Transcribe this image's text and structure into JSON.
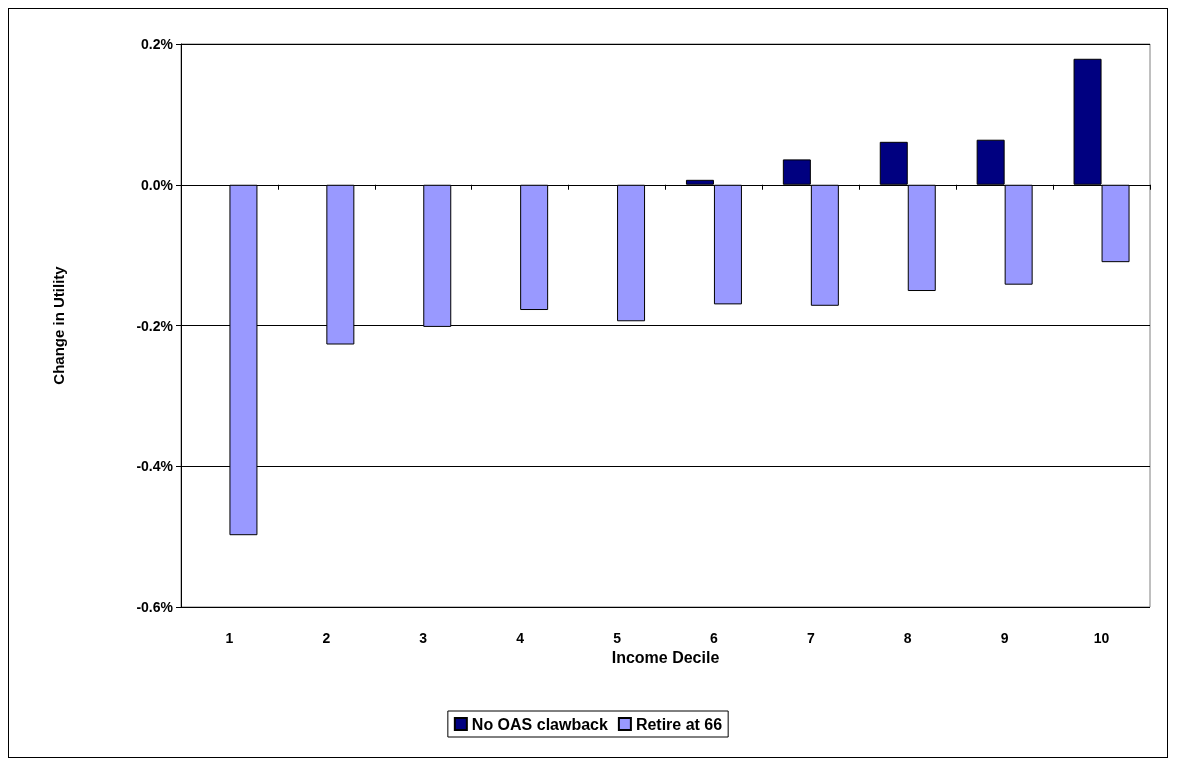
{
  "chart_data": {
    "type": "bar",
    "xlabel": "Income Decile",
    "ylabel": "Change in Utility",
    "categories": [
      "1",
      "2",
      "3",
      "4",
      "5",
      "6",
      "7",
      "8",
      "9",
      "10"
    ],
    "series": [
      {
        "name": "No OAS clawback",
        "color": "#000080",
        "values": [
          null,
          null,
          null,
          null,
          null,
          0.007,
          0.036,
          0.061,
          0.064,
          0.179
        ]
      },
      {
        "name": "Retire at 66",
        "color": "#9999ff",
        "values": [
          -0.498,
          -0.227,
          -0.202,
          -0.178,
          -0.194,
          -0.17,
          -0.172,
          -0.151,
          -0.142,
          -0.11
        ]
      }
    ],
    "ylim": [
      -0.6,
      0.2
    ],
    "yticks": [
      {
        "value": -0.6,
        "label": "-0.6%"
      },
      {
        "value": -0.4,
        "label": "-0.4%"
      },
      {
        "value": -0.2,
        "label": "-0.2%"
      },
      {
        "value": 0,
        "label": "0.0%"
      },
      {
        "value": 0.2,
        "label": "0.2%"
      }
    ],
    "grid": "y",
    "legend": "bottom"
  }
}
